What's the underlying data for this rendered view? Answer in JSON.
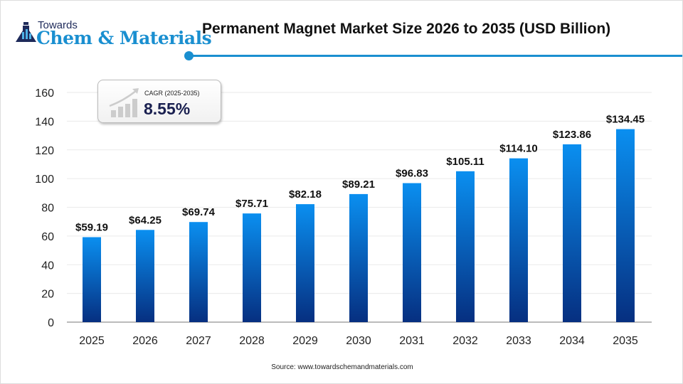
{
  "logo": {
    "line1": "Towards",
    "line2": "Chem & Materials"
  },
  "chart_data": {
    "type": "bar",
    "title": "Permanent Magnet Market Size 2026 to 2035 (USD Billion)",
    "categories": [
      "2025",
      "2026",
      "2027",
      "2028",
      "2029",
      "2030",
      "2031",
      "2032",
      "2033",
      "2034",
      "2035"
    ],
    "values": [
      59.19,
      64.25,
      69.74,
      75.71,
      82.18,
      89.21,
      96.83,
      105.11,
      114.1,
      123.86,
      134.45
    ],
    "data_labels": [
      "$59.19",
      "$64.25",
      "$69.74",
      "$75.71",
      "$82.18",
      "$89.21",
      "$96.83",
      "$105.11",
      "$114.10",
      "$123.86",
      "$134.45"
    ],
    "ylim": [
      0,
      160
    ],
    "yticks": [
      0,
      20,
      40,
      60,
      80,
      100,
      120,
      140,
      160
    ],
    "grid": true,
    "colors": {
      "bar_top": "#0a8ff0",
      "bar_bottom": "#062f80",
      "accent": "#1a8fd0"
    }
  },
  "cagr": {
    "label": "CAGR (2025-2035)",
    "value": "8.55%",
    "icon": "growth-chart-icon"
  },
  "source": "Source: www.towardschemandmaterials.com"
}
